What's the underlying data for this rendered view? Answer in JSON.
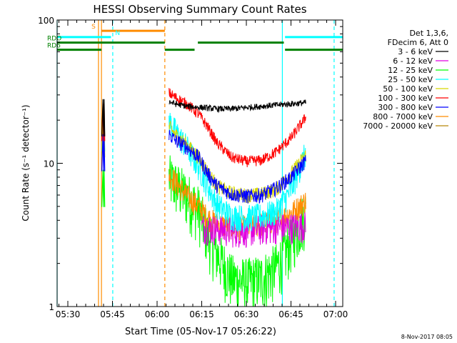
{
  "chart_data": {
    "type": "line",
    "title": "HESSI Observing Summary Count Rates",
    "xlabel": "Start Time (05-Nov-17 05:26:22)",
    "ylabel": "Count Rate (s⁻¹ detector⁻¹)",
    "ylim": [
      1,
      100
    ],
    "y_scale": "log",
    "xlim_minutes": [
      326.4,
      422.4
    ],
    "x_tick_labels": [
      "05:30",
      "05:45",
      "06:00",
      "06:15",
      "06:30",
      "06:45",
      "07:00"
    ],
    "y_tick_labels": [
      "1",
      "10",
      "100"
    ],
    "footer_date": "8-Nov-2017 08:05",
    "legend": {
      "header": [
        "Det 1,3,6,",
        "FDecim 6, Att 0"
      ],
      "placement": "right-outside"
    },
    "series": [
      {
        "name": "3 - 6 keV",
        "color": "#000000",
        "x": [
          364,
          366,
          370,
          375,
          380,
          385,
          390,
          395,
          400,
          405,
          410
        ],
        "y": [
          27,
          26,
          25,
          24.5,
          24,
          24,
          24.5,
          25,
          25.5,
          26,
          26.5
        ]
      },
      {
        "name": "6 - 12 keV",
        "color": "#e000e0",
        "x": [
          375,
          380,
          385,
          390,
          395,
          400,
          405,
          410
        ],
        "y": [
          3.6,
          3.5,
          3.4,
          3.4,
          3.5,
          3.6,
          3.6,
          3.7
        ]
      },
      {
        "name": "12 - 25 keV",
        "color": "#00ff00",
        "x": [
          364,
          366,
          370,
          374,
          377,
          380,
          385,
          390,
          395,
          400,
          403,
          406,
          410
        ],
        "y": [
          8,
          7.2,
          6,
          4.8,
          3.2,
          2.4,
          1.6,
          1.5,
          1.6,
          1.9,
          2.4,
          3.2,
          4.6
        ]
      },
      {
        "name": "25 - 50 keV",
        "color": "#00ffff",
        "x": [
          364,
          366,
          370,
          374,
          377,
          380,
          385,
          390,
          395,
          400,
          405,
          410
        ],
        "y": [
          20,
          17,
          13,
          9.5,
          7,
          5.2,
          4.3,
          4.2,
          4.3,
          4.6,
          6.5,
          12
        ]
      },
      {
        "name": "50 - 100 keV",
        "color": "#d8d800",
        "x": [
          364,
          366,
          370,
          374,
          377,
          380,
          385,
          390,
          395,
          400,
          405,
          410
        ],
        "y": [
          18,
          16,
          13.5,
          11,
          8.8,
          7,
          6.2,
          6,
          6.1,
          6.6,
          8.5,
          11.5
        ]
      },
      {
        "name": "100 - 300 keV",
        "color": "#ff0000",
        "x": [
          364,
          366,
          370,
          374,
          377,
          380,
          385,
          390,
          395,
          400,
          405,
          410
        ],
        "y": [
          31,
          29,
          26,
          22,
          18,
          14,
          11,
          10.3,
          10.5,
          12,
          15,
          21
        ]
      },
      {
        "name": "300 - 800 keV",
        "color": "#0000ff",
        "x": [
          364,
          366,
          370,
          374,
          377,
          380,
          385,
          390,
          395,
          400,
          405,
          410
        ],
        "y": [
          16,
          14.5,
          13,
          11,
          8.5,
          7,
          6.1,
          5.9,
          6,
          6.7,
          8,
          10.5
        ]
      },
      {
        "name": "800 - 7000 keV",
        "color": "#ff8c00",
        "x": [
          364,
          366,
          370,
          374,
          377,
          380,
          385,
          390,
          395,
          400,
          405,
          410
        ],
        "y": [
          8.5,
          7.5,
          6,
          5,
          4.2,
          3.8,
          3.6,
          3.6,
          3.8,
          4,
          4.5,
          5.5
        ]
      },
      {
        "name": "7000 - 20000 keV",
        "color": "#b8860b",
        "x": [],
        "y": []
      }
    ],
    "early_spike": {
      "x": [
        341.4,
        341.8,
        342.0,
        342.2,
        342.4
      ],
      "series_tops": {
        "3 - 6 keV": 28,
        "100 - 300 keV": 26,
        "25 - 50 keV": 22,
        "50 - 100 keV": 20,
        "300 - 800 keV": 16,
        "12 - 25 keV": 9
      }
    },
    "vertical_markers": [
      {
        "x": 326.4,
        "color": "#00ffff",
        "style": "solid"
      },
      {
        "x": 340.3,
        "color": "#ff8c00",
        "style": "solid"
      },
      {
        "x": 341.3,
        "color": "#ff8c00",
        "style": "solid"
      },
      {
        "x": 345.1,
        "color": "#00ffff",
        "style": "dashed"
      },
      {
        "x": 362.6,
        "color": "#ff8c00",
        "style": "dashed"
      },
      {
        "x": 402.1,
        "color": "#00ffff",
        "style": "solid"
      },
      {
        "x": 419.5,
        "color": "#00ffff",
        "style": "dashed"
      }
    ],
    "flag_bars": [
      {
        "label": "S",
        "color": "#ff8c00",
        "y": 84,
        "segments": [
          [
            341.3,
            362.6
          ]
        ]
      },
      {
        "label": "N",
        "color": "#00ffff",
        "y": 76,
        "segments": [
          [
            326.4,
            344.5
          ],
          [
            403,
            422.4
          ]
        ]
      },
      {
        "label": "RDO",
        "color": "#008000",
        "y": 69.5,
        "segments": [
          [
            326.4,
            362.6
          ],
          [
            373.7,
            402.6
          ]
        ]
      },
      {
        "label": "RD6",
        "color": "#008000",
        "y": 62,
        "segments": [
          [
            326.4,
            341.3
          ],
          [
            362.6,
            372.6
          ],
          [
            403,
            422.4
          ]
        ]
      }
    ]
  }
}
